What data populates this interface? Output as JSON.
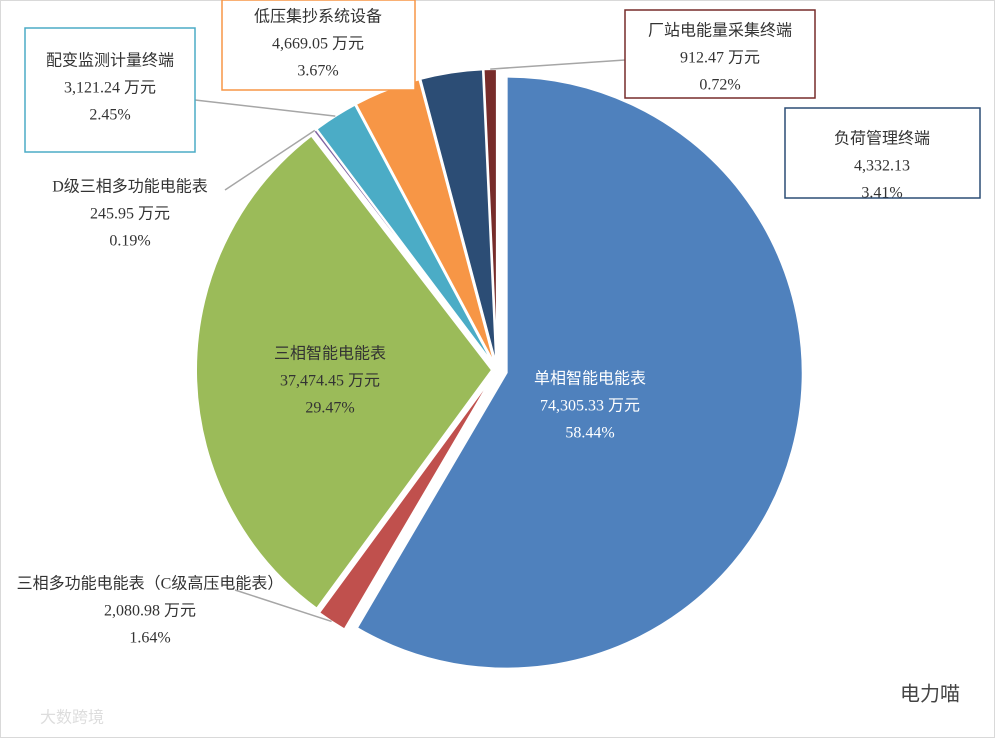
{
  "chart_data": {
    "type": "pie",
    "categories": [
      "单相智能电能表",
      "三相多功能电能表（C级高压电能表）",
      "三相智能电能表",
      "D级三相多功能电能表",
      "配变监测计量终端",
      "低压集抄系统设备",
      "负荷管理终端",
      "厂站电能量采集终端"
    ],
    "values": [
      74305.33,
      2080.98,
      37474.45,
      245.95,
      3121.24,
      4669.05,
      4332.13,
      912.47
    ],
    "value_labels": [
      "74,305.33 万元",
      "2,080.98 万元",
      "37,474.45 万元",
      "245.95 万元",
      "3,121.24 万元",
      "4,669.05 万元",
      "4,332.13",
      "912.47 万元"
    ],
    "percents": [
      58.44,
      1.64,
      29.47,
      0.19,
      2.45,
      3.67,
      3.41,
      0.72
    ],
    "percent_labels": [
      "58.44%",
      "1.64%",
      "29.47%",
      "0.19%",
      "2.45%",
      "3.67%",
      "3.41%",
      "0.72%"
    ],
    "colors": [
      "#4f81bd",
      "#c0504d",
      "#9bbb59",
      "#8064a2",
      "#4bacc6",
      "#f79646",
      "#2c4d75",
      "#772c2a"
    ]
  },
  "watermarks": [
    "电力喵",
    "大数跨境"
  ]
}
